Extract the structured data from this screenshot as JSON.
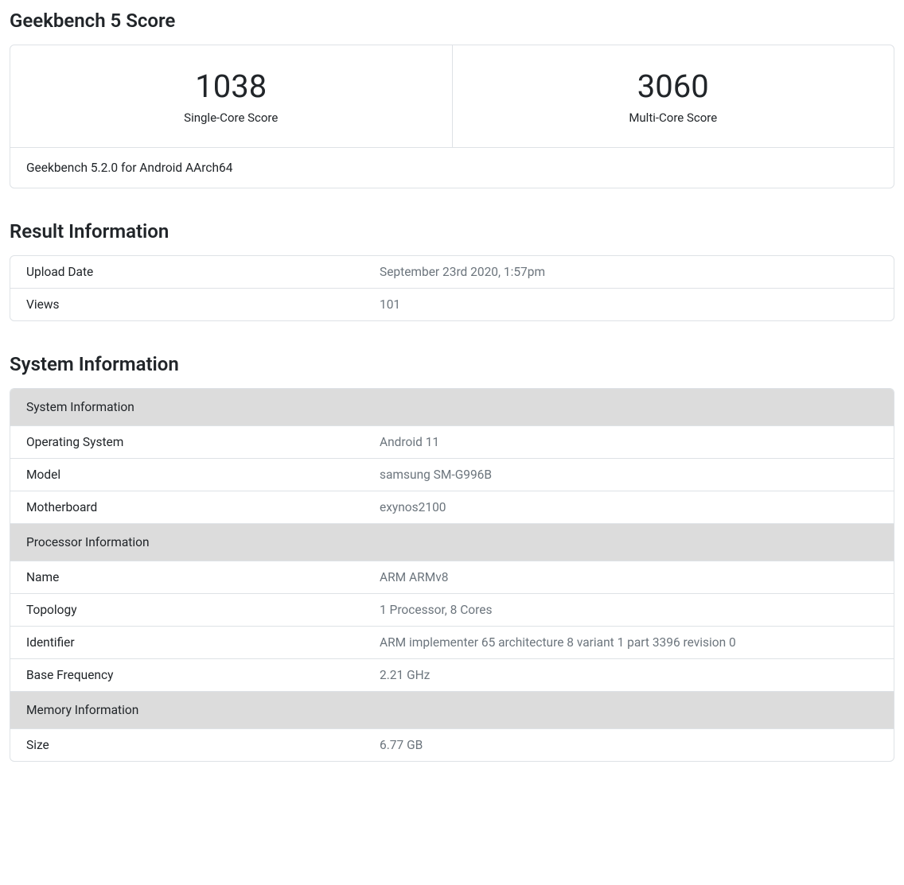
{
  "score": {
    "heading": "Geekbench 5 Score",
    "single_core_value": "1038",
    "single_core_label": "Single-Core Score",
    "multi_core_value": "3060",
    "multi_core_label": "Multi-Core Score",
    "footer": "Geekbench 5.2.0 for Android AArch64"
  },
  "result_info": {
    "heading": "Result Information",
    "rows": [
      {
        "label": "Upload Date",
        "value": "September 23rd 2020, 1:57pm"
      },
      {
        "label": "Views",
        "value": "101"
      }
    ]
  },
  "system_info": {
    "heading": "System Information",
    "sections": [
      {
        "title": "System Information",
        "rows": [
          {
            "label": "Operating System",
            "value": "Android 11"
          },
          {
            "label": "Model",
            "value": "samsung SM-G996B"
          },
          {
            "label": "Motherboard",
            "value": "exynos2100"
          }
        ]
      },
      {
        "title": "Processor Information",
        "rows": [
          {
            "label": "Name",
            "value": "ARM ARMv8"
          },
          {
            "label": "Topology",
            "value": "1 Processor, 8 Cores"
          },
          {
            "label": "Identifier",
            "value": "ARM implementer 65 architecture 8 variant 1 part 3396 revision 0"
          },
          {
            "label": "Base Frequency",
            "value": "2.21 GHz"
          }
        ]
      },
      {
        "title": "Memory Information",
        "rows": [
          {
            "label": "Size",
            "value": "6.77 GB"
          }
        ]
      }
    ]
  },
  "colors": {
    "border": "#dee2e6",
    "text": "#212529",
    "muted": "#6c757d",
    "section_bg": "#dcdcdc",
    "background": "#ffffff"
  },
  "typography": {
    "heading_fontsize": 24,
    "score_fontsize": 40,
    "body_fontsize": 15.5
  }
}
